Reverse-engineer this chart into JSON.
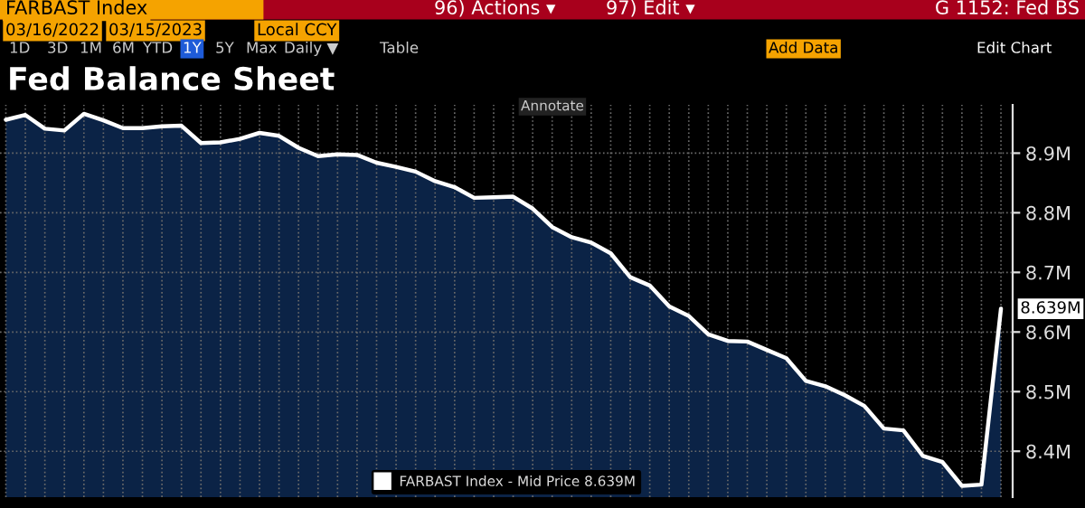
{
  "chart_data": {
    "type": "area",
    "title": "Fed Balance Sheet",
    "categories": [
      null,
      null,
      null,
      null,
      null,
      null,
      null,
      null,
      null,
      null,
      null,
      null,
      null,
      null,
      null,
      null,
      null,
      null,
      null,
      null,
      null,
      null,
      null,
      null,
      null,
      null,
      null,
      null,
      null,
      null,
      null,
      null,
      null,
      null,
      null,
      null,
      null,
      null,
      null,
      null,
      null,
      null,
      null,
      null,
      null,
      null,
      null,
      null,
      null,
      null,
      null,
      null
    ],
    "series": [
      {
        "name": "FARBAST Index - Mid Price 8.639M",
        "color": "#ffffff",
        "values": [
          8.956,
          8.964,
          8.941,
          8.938,
          8.966,
          8.955,
          8.942,
          8.942,
          8.945,
          8.946,
          8.917,
          8.918,
          8.924,
          8.934,
          8.929,
          8.909,
          8.895,
          8.898,
          8.897,
          8.884,
          8.877,
          8.869,
          8.853,
          8.843,
          8.825,
          8.826,
          8.827,
          8.807,
          8.776,
          8.759,
          8.75,
          8.732,
          8.692,
          8.678,
          8.643,
          8.627,
          8.596,
          8.585,
          8.584,
          8.57,
          8.556,
          8.518,
          8.509,
          8.494,
          8.476,
          8.438,
          8.435,
          8.392,
          8.382,
          8.342,
          8.344,
          8.639
        ],
        "value_labels": [
          null,
          null,
          null,
          null,
          null,
          null,
          null,
          null,
          null,
          null,
          null,
          null,
          null,
          null,
          null,
          null,
          null,
          null,
          null,
          null,
          null,
          null,
          null,
          null,
          null,
          null,
          null,
          null,
          null,
          null,
          null,
          null,
          null,
          null,
          null,
          null,
          null,
          null,
          null,
          null,
          null,
          null,
          null,
          null,
          null,
          null,
          null,
          null,
          null,
          null,
          null,
          "8.639M"
        ]
      }
    ],
    "ylim": [
      8.323,
      8.981
    ],
    "yticks": [
      {
        "value": 8.4,
        "label": "8.4M"
      },
      {
        "value": 8.5,
        "label": "8.5M"
      },
      {
        "value": 8.6,
        "label": "8.6M"
      },
      {
        "value": 8.7,
        "label": "8.7M"
      },
      {
        "value": 8.8,
        "label": "8.8M"
      },
      {
        "value": 8.9,
        "label": "8.9M"
      }
    ],
    "grid": true,
    "legend": "bottom",
    "line_style": "solid",
    "marker": "none",
    "annotations": [
      "FARBAST Index",
      "96) Actions ▾",
      "97) Edit ▾",
      "G 1152: Fed BS",
      "03/16/2022",
      "03/15/2023",
      "Local CCY",
      "1D",
      "3D",
      "1M",
      "6M",
      "YTD",
      "1Y",
      "5Y",
      "Max",
      "Daily ▼",
      "Table",
      "Add Data",
      "Edit Chart",
      "Annotate"
    ]
  }
}
